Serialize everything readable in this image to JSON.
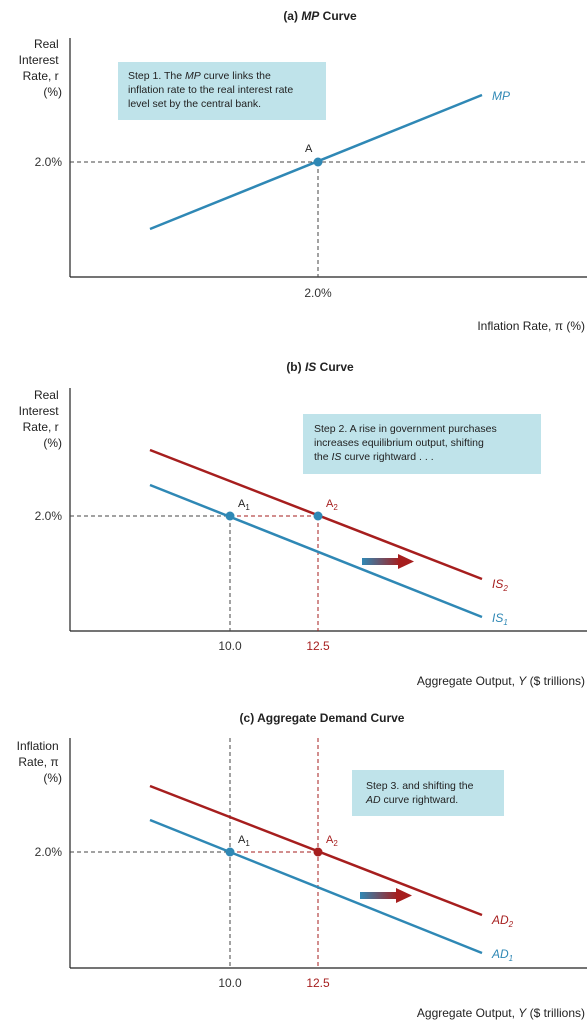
{
  "colors": {
    "blue": "#2f88b5",
    "red": "#a61e1e",
    "note_bg": "#bfe3ea",
    "axis": "#222222",
    "dash_black": "#444444",
    "dash_red": "#a61e1e"
  },
  "chart_data": [
    {
      "type": "line",
      "title_prefix": "(a) ",
      "title_italic": "MP",
      "title_suffix": " Curve",
      "ylabel_lines": [
        "Real",
        "Interest",
        "Rate, r",
        "(%)"
      ],
      "xlabel": "Inflation Rate, π (%)",
      "x_ticks": [
        "2.0%"
      ],
      "y_ticks": [
        "2.0%"
      ],
      "series": [
        {
          "name": "MP",
          "color": "blue"
        }
      ],
      "points": [
        {
          "label": "A",
          "color": "blue"
        }
      ],
      "annotation_lines": [
        "Step 1. The MP curve links the",
        "inflation rate to the real interest rate",
        "level set by the central bank."
      ]
    },
    {
      "type": "line",
      "title_prefix": "(b) ",
      "title_italic": "IS",
      "title_suffix": " Curve",
      "ylabel_lines": [
        "Real",
        "Interest",
        "Rate, r",
        "(%)"
      ],
      "xlabel": "Aggregate Output, Y ($ trillions)",
      "x_ticks": [
        "10.0",
        "12.5"
      ],
      "y_ticks": [
        "2.0%"
      ],
      "series": [
        {
          "name": "IS",
          "sub": "1",
          "color": "blue"
        },
        {
          "name": "IS",
          "sub": "2",
          "color": "red"
        }
      ],
      "points": [
        {
          "label": "A",
          "sub": "1",
          "color": "blue",
          "x": 10.0,
          "y": 2.0
        },
        {
          "label": "A",
          "sub": "2",
          "color": "blue",
          "x": 12.5,
          "y": 2.0
        }
      ],
      "annotation_lines": [
        "Step 2. A rise in government purchases",
        "increases equilibrium output, shifting",
        "the IS curve rightward . . ."
      ]
    },
    {
      "type": "line",
      "title_prefix": "(c) ",
      "title_italic": "",
      "title_suffix": "Aggregate Demand Curve",
      "ylabel_lines": [
        "Inflation",
        "Rate, π",
        "(%)"
      ],
      "xlabel": "Aggregate Output, Y ($ trillions)",
      "x_ticks": [
        "10.0",
        "12.5"
      ],
      "y_ticks": [
        "2.0%"
      ],
      "series": [
        {
          "name": "AD",
          "sub": "1",
          "color": "blue"
        },
        {
          "name": "AD",
          "sub": "2",
          "color": "red"
        }
      ],
      "points": [
        {
          "label": "A",
          "sub": "1",
          "color": "blue",
          "x": 10.0,
          "y": 2.0
        },
        {
          "label": "A",
          "sub": "2",
          "color": "red",
          "x": 12.5,
          "y": 2.0
        }
      ],
      "annotation_lines": [
        "Step 3. and shifting the",
        "AD curve rightward."
      ]
    }
  ]
}
